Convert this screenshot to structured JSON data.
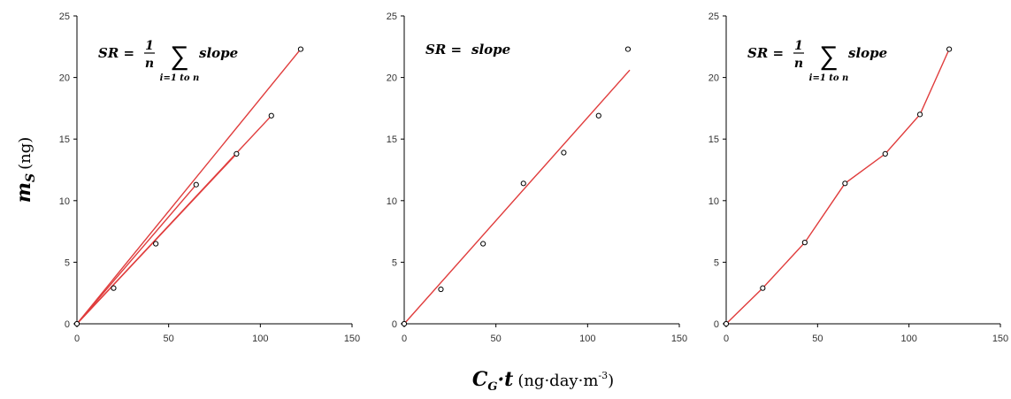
{
  "y_axis_label": {
    "main": "m",
    "sub": "S",
    "unit": "(ng)"
  },
  "x_axis_label": {
    "main": "C",
    "sub": "G",
    "mid": "·t",
    "unit": "(ng·day·m",
    "sup": "-3",
    "close": ")"
  },
  "chart_data": [
    {
      "type": "scatter",
      "fit": "individual slopes through origin",
      "annotation": {
        "lhs": "SR = ",
        "numer": "1",
        "denom": "n",
        "sum": "∑",
        "sum_sub": "i=1 to n",
        "rhs": "slope"
      },
      "xlim": [
        0,
        150
      ],
      "ylim": [
        0,
        25
      ],
      "x_ticks": [
        "0",
        "50",
        "100",
        "150"
      ],
      "y_ticks": [
        "0",
        "5",
        "10",
        "15",
        "20",
        "25"
      ],
      "points": {
        "x": [
          0,
          20,
          43,
          65,
          87,
          106,
          122
        ],
        "y": [
          0,
          2.9,
          6.5,
          11.3,
          13.8,
          16.9,
          22.3
        ]
      },
      "lines": [
        {
          "x": [
            0,
            87
          ],
          "y": [
            0,
            13.8
          ]
        },
        {
          "x": [
            0,
            106
          ],
          "y": [
            0,
            16.9
          ]
        },
        {
          "x": [
            0,
            122
          ],
          "y": [
            0,
            22.3
          ]
        },
        {
          "x": [
            0,
            65
          ],
          "y": [
            0,
            11.3
          ]
        }
      ]
    },
    {
      "type": "scatter",
      "fit": "single regression line",
      "annotation": {
        "lhs": "SR = ",
        "rhs": "slope"
      },
      "xlim": [
        0,
        150
      ],
      "ylim": [
        0,
        25
      ],
      "x_ticks": [
        "0",
        "50",
        "100",
        "150"
      ],
      "y_ticks": [
        "0",
        "5",
        "10",
        "15",
        "20",
        "25"
      ],
      "points": {
        "x": [
          0,
          20,
          43,
          65,
          87,
          106,
          122
        ],
        "y": [
          0,
          2.8,
          6.5,
          11.4,
          13.9,
          16.9,
          22.3
        ]
      },
      "lines": [
        {
          "x": [
            0,
            123
          ],
          "y": [
            0,
            20.6
          ]
        }
      ]
    },
    {
      "type": "scatter",
      "fit": "segment slopes",
      "annotation": {
        "lhs": "SR = ",
        "numer": "1",
        "denom": "n",
        "sum": "∑",
        "sum_sub": "i=1 to n",
        "rhs": "slope"
      },
      "xlim": [
        0,
        150
      ],
      "ylim": [
        0,
        25
      ],
      "x_ticks": [
        "0",
        "50",
        "100",
        "150"
      ],
      "y_ticks": [
        "0",
        "5",
        "10",
        "15",
        "20",
        "25"
      ],
      "points": {
        "x": [
          0,
          20,
          43,
          65,
          87,
          106,
          122
        ],
        "y": [
          0,
          2.9,
          6.6,
          11.4,
          13.8,
          17.0,
          22.3
        ]
      },
      "lines": [
        {
          "x": [
            0,
            20,
            43,
            65,
            87,
            106,
            122
          ],
          "y": [
            0,
            2.9,
            6.6,
            11.4,
            13.8,
            17.0,
            22.3
          ]
        }
      ]
    }
  ],
  "colors": {
    "line": "#e03c3c",
    "marker_stroke": "#000000",
    "axis": "#000000"
  }
}
